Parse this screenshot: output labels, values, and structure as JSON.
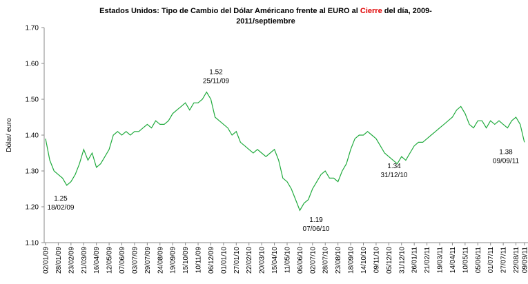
{
  "chart_data": {
    "type": "line",
    "title": {
      "before": "Estados Unidos: Tipo de Cambio del Dólar Américano frente al EURO al",
      "highlight": "Cierre",
      "after": "del día, 2009-",
      "line2": "2011/septiembre"
    },
    "y_label": "Dólar/ euro",
    "categories": [
      "02/01/09",
      null,
      null,
      "28/01/09",
      null,
      null,
      "23/02/09",
      null,
      null,
      "21/03/09",
      null,
      null,
      "16/04/09",
      null,
      null,
      "12/05/09",
      null,
      null,
      "07/06/09",
      null,
      null,
      "03/07/09",
      null,
      null,
      "29/07/09",
      null,
      null,
      "24/08/09",
      null,
      null,
      "19/09/09",
      null,
      null,
      "15/10/09",
      null,
      null,
      "10/11/09",
      null,
      null,
      "06/12/09",
      null,
      null,
      "01/01/10",
      null,
      null,
      "27/01/10",
      null,
      null,
      "22/02/10",
      null,
      null,
      "20/03/10",
      null,
      null,
      "15/04/10",
      null,
      null,
      "11/05/10",
      null,
      null,
      "06/06/10",
      null,
      null,
      "02/07/10",
      null,
      null,
      "28/07/10",
      null,
      null,
      "23/08/10",
      null,
      null,
      "18/09/10",
      null,
      null,
      "14/10/10",
      null,
      null,
      "09/11/10",
      null,
      null,
      "05/12/10",
      null,
      null,
      "31/12/10",
      null,
      null,
      "26/01/11",
      null,
      null,
      "21/02/11",
      null,
      null,
      "19/03/11",
      null,
      null,
      "14/04/11",
      null,
      null,
      "10/05/11",
      null,
      null,
      "05/06/11",
      null,
      null,
      "01/07/11",
      null,
      null,
      "27/07/11",
      null,
      null,
      "22/08/11",
      null,
      "09/09/11"
    ],
    "series": [
      {
        "name": "Dólar/ euro",
        "color": "#1faa3c",
        "values": [
          1.39,
          1.33,
          1.3,
          1.29,
          1.28,
          1.26,
          1.27,
          1.29,
          1.32,
          1.36,
          1.33,
          1.35,
          1.31,
          1.32,
          1.34,
          1.36,
          1.4,
          1.41,
          1.4,
          1.41,
          1.4,
          1.41,
          1.41,
          1.42,
          1.43,
          1.42,
          1.44,
          1.43,
          1.43,
          1.44,
          1.46,
          1.47,
          1.48,
          1.49,
          1.47,
          1.49,
          1.49,
          1.5,
          1.52,
          1.5,
          1.45,
          1.44,
          1.43,
          1.42,
          1.4,
          1.41,
          1.38,
          1.37,
          1.36,
          1.35,
          1.36,
          1.35,
          1.34,
          1.35,
          1.36,
          1.33,
          1.28,
          1.27,
          1.25,
          1.22,
          1.19,
          1.21,
          1.22,
          1.25,
          1.27,
          1.29,
          1.3,
          1.28,
          1.28,
          1.27,
          1.3,
          1.32,
          1.36,
          1.39,
          1.4,
          1.4,
          1.41,
          1.4,
          1.39,
          1.37,
          1.35,
          1.34,
          1.33,
          1.32,
          1.34,
          1.33,
          1.35,
          1.37,
          1.38,
          1.38,
          1.39,
          1.4,
          1.41,
          1.42,
          1.43,
          1.44,
          1.45,
          1.47,
          1.48,
          1.46,
          1.43,
          1.42,
          1.44,
          1.44,
          1.42,
          1.44,
          1.43,
          1.44,
          1.43,
          1.42,
          1.44,
          1.45,
          1.43,
          1.38
        ]
      }
    ],
    "ylim": [
      1.1,
      1.7
    ],
    "yticks": [
      {
        "value": 1.1,
        "label": "1.10"
      },
      {
        "value": 1.2,
        "label": "1.20"
      },
      {
        "value": 1.3,
        "label": "1.30"
      },
      {
        "value": 1.4,
        "label": "1.40"
      },
      {
        "value": 1.5,
        "label": "1.50"
      },
      {
        "value": 1.6,
        "label": "1.60"
      },
      {
        "value": 1.7,
        "label": "1.70"
      }
    ],
    "annotations": [
      {
        "value": 1.25,
        "label": "18/02/09"
      },
      {
        "value": 1.52,
        "label": "25/11/09"
      },
      {
        "value": 1.19,
        "label": "07/06/10"
      },
      {
        "value": 1.34,
        "label": "31/12/10"
      },
      {
        "value": 1.38,
        "label": "09/09/11"
      }
    ]
  }
}
